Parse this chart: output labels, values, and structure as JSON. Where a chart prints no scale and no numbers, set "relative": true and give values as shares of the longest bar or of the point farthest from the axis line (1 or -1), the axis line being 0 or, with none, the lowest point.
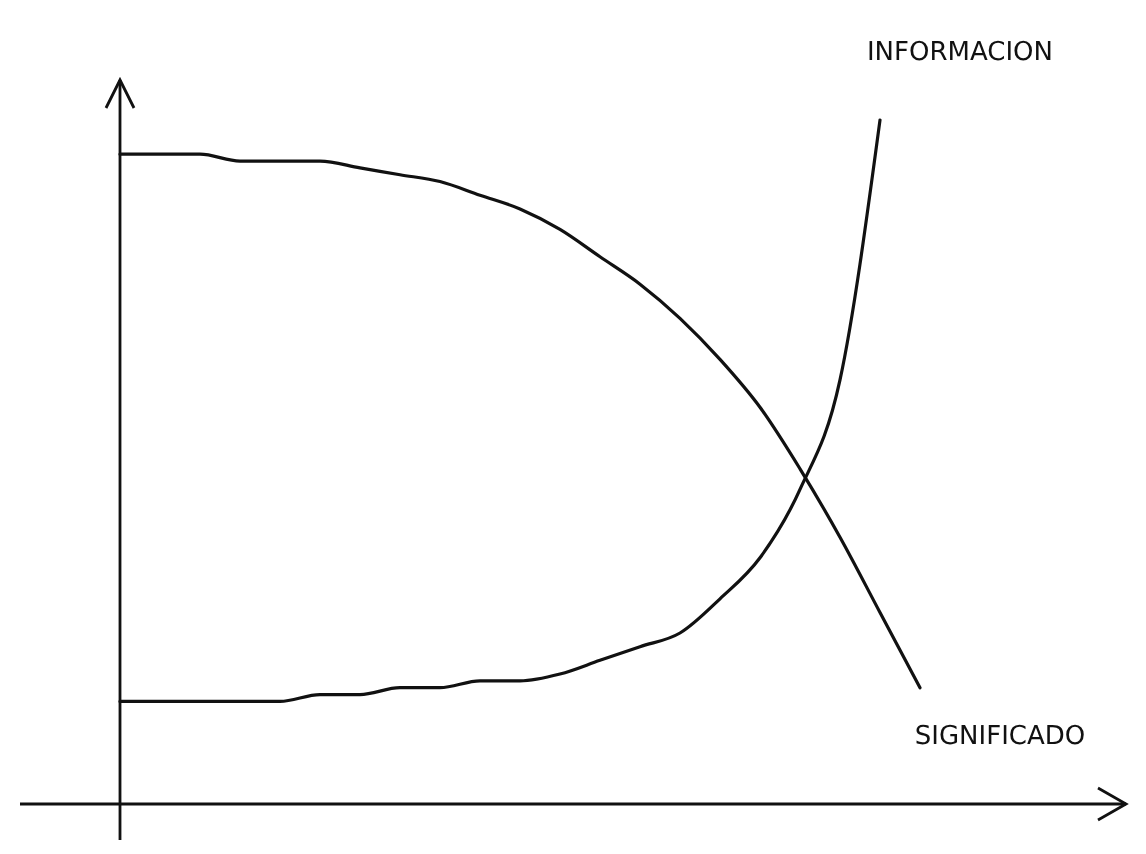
{
  "chart_data": {
    "type": "line",
    "relative": true,
    "line_style": "solid",
    "categories": [
      null,
      null,
      null,
      null,
      null,
      null,
      null,
      null,
      null,
      null,
      null,
      null,
      null,
      null,
      null,
      null,
      null,
      null,
      null,
      null,
      null,
      null
    ],
    "series": [
      {
        "name": "INFORMACION",
        "color": "#111111",
        "values": [
          0.15,
          0.15,
          0.15,
          0.15,
          0.15,
          0.16,
          0.16,
          0.17,
          0.17,
          0.18,
          0.18,
          0.19,
          0.21,
          0.23,
          0.25,
          0.3,
          0.36,
          0.46,
          0.62,
          1,
          null,
          null
        ]
      },
      {
        "name": "SIGNIFICADO",
        "color": "#111111",
        "values": [
          0.95,
          0.95,
          0.95,
          0.94,
          0.94,
          0.94,
          0.93,
          0.92,
          0.91,
          0.89,
          0.87,
          0.84,
          0.8,
          0.76,
          0.71,
          0.65,
          0.58,
          0.49,
          0.39,
          0.28,
          0.17,
          null
        ]
      }
    ]
  }
}
